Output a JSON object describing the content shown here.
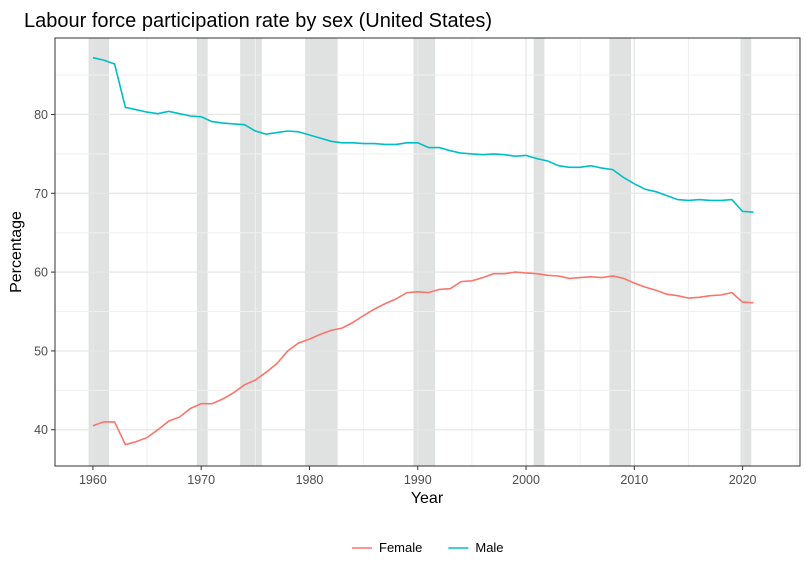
{
  "chart_data": {
    "type": "line",
    "title": "Labour force participation rate by sex (United States)",
    "xlabel": "Year",
    "ylabel": "Percentage",
    "xlim": [
      1956.5,
      2025.3
    ],
    "ylim": [
      35.4,
      89.7
    ],
    "xticks": [
      1960,
      1970,
      1980,
      1990,
      2000,
      2010,
      2020
    ],
    "yticks": [
      40,
      50,
      60,
      70,
      80
    ],
    "grid": true,
    "legend_position": "bottom",
    "shaded_periods": [
      [
        1959.6,
        1961.5
      ],
      [
        1969.6,
        1970.6
      ],
      [
        1973.6,
        1975.6
      ],
      [
        1979.6,
        1982.6
      ],
      [
        1989.6,
        1991.6
      ],
      [
        2000.7,
        2001.7
      ],
      [
        2007.7,
        2009.7
      ],
      [
        2019.8,
        2020.8
      ]
    ],
    "x": [
      1960,
      1961,
      1962,
      1963,
      1964,
      1965,
      1966,
      1967,
      1968,
      1969,
      1970,
      1971,
      1972,
      1973,
      1974,
      1975,
      1976,
      1977,
      1978,
      1979,
      1980,
      1981,
      1982,
      1983,
      1984,
      1985,
      1986,
      1987,
      1988,
      1989,
      1990,
      1991,
      1992,
      1993,
      1994,
      1995,
      1996,
      1997,
      1998,
      1999,
      2000,
      2001,
      2002,
      2003,
      2004,
      2005,
      2006,
      2007,
      2008,
      2009,
      2010,
      2011,
      2012,
      2013,
      2014,
      2015,
      2016,
      2017,
      2018,
      2019,
      2020,
      2021
    ],
    "series": [
      {
        "name": "Female",
        "color": "#F8766D",
        "values": [
          40.5,
          41.0,
          41.0,
          38.1,
          38.5,
          39.0,
          40.0,
          41.1,
          41.6,
          42.7,
          43.3,
          43.3,
          43.9,
          44.7,
          45.7,
          46.3,
          47.3,
          48.4,
          50.0,
          51.0,
          51.5,
          52.1,
          52.6,
          52.9,
          53.6,
          54.5,
          55.3,
          56.0,
          56.6,
          57.4,
          57.5,
          57.4,
          57.8,
          57.9,
          58.8,
          58.9,
          59.3,
          59.8,
          59.8,
          60.0,
          59.9,
          59.8,
          59.6,
          59.5,
          59.2,
          59.3,
          59.4,
          59.3,
          59.5,
          59.2,
          58.6,
          58.1,
          57.7,
          57.2,
          57.0,
          56.7,
          56.8,
          57.0,
          57.1,
          57.4,
          56.2,
          56.1
        ]
      },
      {
        "name": "Male",
        "color": "#00BFC4",
        "values": [
          87.2,
          86.9,
          86.4,
          80.9,
          80.6,
          80.3,
          80.1,
          80.4,
          80.1,
          79.8,
          79.7,
          79.1,
          78.9,
          78.8,
          78.7,
          77.9,
          77.5,
          77.7,
          77.9,
          77.8,
          77.4,
          77.0,
          76.6,
          76.4,
          76.4,
          76.3,
          76.3,
          76.2,
          76.2,
          76.4,
          76.4,
          75.8,
          75.8,
          75.4,
          75.1,
          75.0,
          74.9,
          75.0,
          74.9,
          74.7,
          74.8,
          74.4,
          74.1,
          73.5,
          73.3,
          73.3,
          73.5,
          73.2,
          73.0,
          72.0,
          71.2,
          70.5,
          70.2,
          69.7,
          69.2,
          69.1,
          69.2,
          69.1,
          69.1,
          69.2,
          67.7,
          67.6
        ]
      }
    ]
  }
}
